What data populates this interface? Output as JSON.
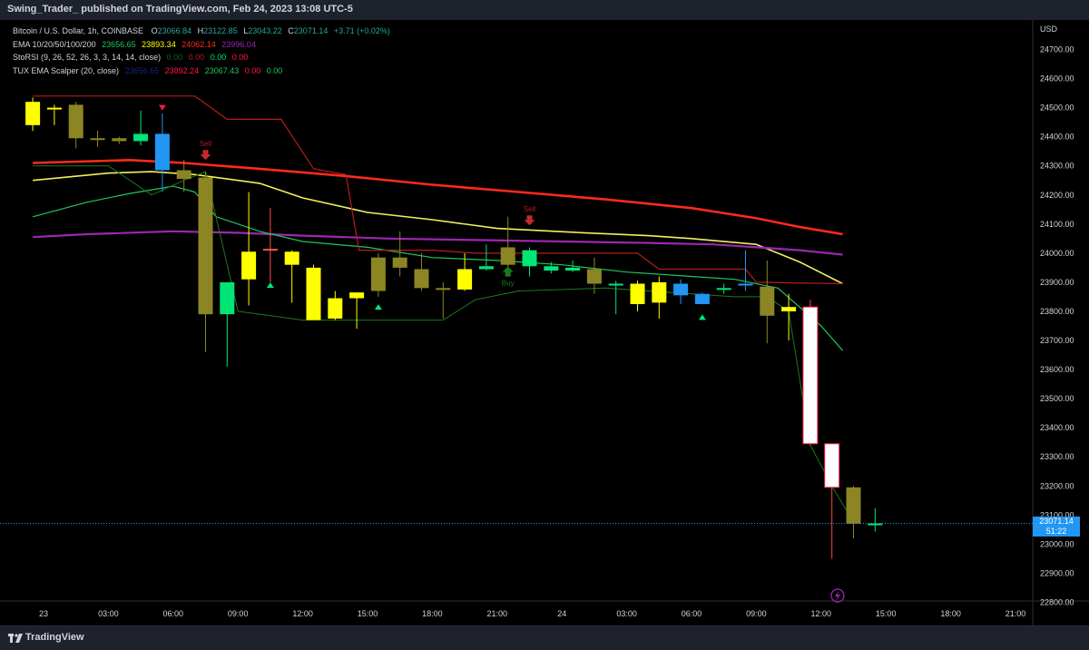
{
  "header": {
    "published_text": "Swing_Trader_ published on TradingView.com, Feb 24, 2023 13:08 UTC-5"
  },
  "legend": {
    "symbol": "Bitcoin / U.S. Dollar, 1h, COINBASE",
    "ohlc": {
      "o_label": "O",
      "o": "23066.84",
      "h_label": "H",
      "h": "23122.85",
      "l_label": "L",
      "l": "23043.22",
      "c_label": "C",
      "c": "23071.14",
      "change": "+3.71 (+0.02%)"
    },
    "ema": {
      "label": "EMA 10/20/50/100/200",
      "v1": "23656.65",
      "v2": "23893.34",
      "v3": "24062.14",
      "v4": "23996.04"
    },
    "storsi": {
      "label": "StoRSI (9, 26, 52, 26, 3, 3, 14, 14, close)",
      "v1": "0.00",
      "v2": "0.00",
      "v3": "0.00",
      "v4": "0.00"
    },
    "tux": {
      "label": "TUX EMA Scalper (20, close)",
      "v1": "23656.65",
      "v2": "23892.24",
      "v3": "23067.43",
      "v4": "0.00",
      "v5": "0.00"
    }
  },
  "currency_label": "USD",
  "last_price": {
    "price": "23071.14",
    "countdown": "51:22"
  },
  "footer": {
    "brand": "TradingView"
  },
  "colors": {
    "background": "#000000",
    "yellow": "#ffff00",
    "green": "#00e676",
    "blue": "#2196f3",
    "olive": "#8c8523",
    "white": "#ffffff",
    "ema_red": "#ff2a1a",
    "ema_yellow": "#f0f060",
    "ema_purple": "#9c27b0",
    "ema_green": "#22c55e",
    "scalper_dark_red": "#b71c1c",
    "scalper_dark_green": "#1b7a1b"
  },
  "chart_data": {
    "type": "candlestick",
    "y_ticks": [
      "24700.00",
      "24600.00",
      "24500.00",
      "24400.00",
      "24300.00",
      "24200.00",
      "24100.00",
      "24000.00",
      "23900.00",
      "23800.00",
      "23700.00",
      "23600.00",
      "23500.00",
      "23400.00",
      "23300.00",
      "23200.00",
      "23100.00",
      "23000.00",
      "22900.00",
      "22800.00"
    ],
    "x_ticks": [
      {
        "t": 0,
        "label": "23"
      },
      {
        "t": 3,
        "label": "03:00"
      },
      {
        "t": 6,
        "label": "06:00"
      },
      {
        "t": 9,
        "label": "09:00"
      },
      {
        "t": 12,
        "label": "12:00"
      },
      {
        "t": 15,
        "label": "15:00"
      },
      {
        "t": 18,
        "label": "18:00"
      },
      {
        "t": 21,
        "label": "21:00"
      },
      {
        "t": 24,
        "label": "24"
      },
      {
        "t": 27,
        "label": "03:00"
      },
      {
        "t": 30,
        "label": "06:00"
      },
      {
        "t": 33,
        "label": "09:00"
      },
      {
        "t": 36,
        "label": "12:00"
      },
      {
        "t": 39,
        "label": "15:00"
      },
      {
        "t": 42,
        "label": "18:00"
      },
      {
        "t": 45,
        "label": "21:00"
      }
    ],
    "ylim": [
      22750,
      24800
    ],
    "candles": [
      {
        "t": -0.5,
        "o": 24520,
        "h": 24535,
        "l": 24420,
        "c": 24440,
        "color": "yellow"
      },
      {
        "t": 0.5,
        "o": 24500,
        "h": 24510,
        "l": 24440,
        "c": 24500,
        "color": "yellow"
      },
      {
        "t": 1.5,
        "o": 24510,
        "h": 24520,
        "l": 24360,
        "c": 24395,
        "color": "olive"
      },
      {
        "t": 2.5,
        "o": 24395,
        "h": 24420,
        "l": 24365,
        "c": 24390,
        "color": "olive"
      },
      {
        "t": 3.5,
        "o": 24385,
        "h": 24400,
        "l": 24375,
        "c": 24395,
        "color": "olive"
      },
      {
        "t": 4.5,
        "o": 24385,
        "h": 24490,
        "l": 24370,
        "c": 24410,
        "color": "green"
      },
      {
        "t": 5.5,
        "o": 24410,
        "h": 24480,
        "l": 24210,
        "c": 24285,
        "color": "blue"
      },
      {
        "t": 6.5,
        "o": 24285,
        "h": 24320,
        "l": 24210,
        "c": 24255,
        "color": "olive"
      },
      {
        "t": 7.5,
        "o": 24260,
        "h": 24280,
        "l": 23660,
        "c": 23790,
        "color": "olive"
      },
      {
        "t": 8.5,
        "o": 23790,
        "h": 23890,
        "l": 23610,
        "c": 23900,
        "color": "green"
      },
      {
        "t": 9.5,
        "o": 23910,
        "h": 24210,
        "l": 23820,
        "c": 24005,
        "color": "yellow"
      },
      {
        "t": 10.5,
        "o": 24015,
        "h": 24155,
        "l": 23900,
        "c": 24015,
        "color": "red"
      },
      {
        "t": 11.5,
        "o": 24005,
        "h": 24010,
        "l": 23830,
        "c": 23960,
        "color": "yellow"
      },
      {
        "t": 12.5,
        "o": 23950,
        "h": 23960,
        "l": 23780,
        "c": 23770,
        "color": "yellow"
      },
      {
        "t": 13.5,
        "o": 23775,
        "h": 23870,
        "l": 23770,
        "c": 23845,
        "color": "yellow"
      },
      {
        "t": 14.5,
        "o": 23845,
        "h": 23865,
        "l": 23740,
        "c": 23865,
        "color": "yellow"
      },
      {
        "t": 15.5,
        "o": 23870,
        "h": 24000,
        "l": 23850,
        "c": 23985,
        "color": "olive"
      },
      {
        "t": 16.5,
        "o": 23985,
        "h": 24075,
        "l": 23920,
        "c": 23950,
        "color": "olive"
      },
      {
        "t": 17.5,
        "o": 23945,
        "h": 24000,
        "l": 23870,
        "c": 23880,
        "color": "olive"
      },
      {
        "t": 18.5,
        "o": 23880,
        "h": 23900,
        "l": 23775,
        "c": 23875,
        "color": "olive"
      },
      {
        "t": 19.5,
        "o": 23875,
        "h": 24000,
        "l": 23870,
        "c": 23945,
        "color": "yellow"
      },
      {
        "t": 20.5,
        "o": 23955,
        "h": 24030,
        "l": 23940,
        "c": 23945,
        "color": "green"
      },
      {
        "t": 21.5,
        "o": 23960,
        "h": 24125,
        "l": 23950,
        "c": 24020,
        "color": "olive"
      },
      {
        "t": 22.5,
        "o": 24010,
        "h": 24020,
        "l": 23920,
        "c": 23955,
        "color": "green"
      },
      {
        "t": 23.5,
        "o": 23955,
        "h": 23970,
        "l": 23930,
        "c": 23940,
        "color": "green"
      },
      {
        "t": 24.5,
        "o": 23950,
        "h": 23975,
        "l": 23935,
        "c": 23940,
        "color": "green"
      },
      {
        "t": 25.5,
        "o": 23945,
        "h": 23985,
        "l": 23860,
        "c": 23895,
        "color": "olive"
      },
      {
        "t": 26.5,
        "o": 23895,
        "h": 23905,
        "l": 23790,
        "c": 23895,
        "color": "green"
      },
      {
        "t": 27.5,
        "o": 23895,
        "h": 23905,
        "l": 23800,
        "c": 23825,
        "color": "yellow"
      },
      {
        "t": 28.5,
        "o": 23830,
        "h": 23920,
        "l": 23775,
        "c": 23900,
        "color": "yellow"
      },
      {
        "t": 29.5,
        "o": 23895,
        "h": 23910,
        "l": 23825,
        "c": 23855,
        "color": "blue"
      },
      {
        "t": 30.5,
        "o": 23860,
        "h": 23865,
        "l": 23825,
        "c": 23825,
        "color": "blue"
      },
      {
        "t": 31.5,
        "o": 23875,
        "h": 23895,
        "l": 23860,
        "c": 23880,
        "color": "green"
      },
      {
        "t": 32.5,
        "o": 23890,
        "h": 24010,
        "l": 23870,
        "c": 23895,
        "color": "blue"
      },
      {
        "t": 33.5,
        "o": 23885,
        "h": 23975,
        "l": 23690,
        "c": 23785,
        "color": "olive"
      },
      {
        "t": 34.5,
        "o": 23800,
        "h": 23860,
        "l": 23700,
        "c": 23815,
        "color": "yellow"
      },
      {
        "t": 35.5,
        "o": 23815,
        "h": 23840,
        "l": 23340,
        "c": 23345,
        "color": "white"
      },
      {
        "t": 36.5,
        "o": 23345,
        "h": 23345,
        "l": 22950,
        "c": 23195,
        "color": "white"
      },
      {
        "t": 37.5,
        "o": 23195,
        "h": 23200,
        "l": 23020,
        "c": 23070,
        "color": "olive"
      },
      {
        "t": 38.5,
        "o": 23067,
        "h": 23123,
        "l": 23043,
        "c": 23071,
        "color": "green"
      }
    ],
    "series": [
      {
        "name": "EMA 10/20/50/100/200",
        "color": "ema_red",
        "points": [
          [
            -0.5,
            24310
          ],
          [
            4,
            24320
          ],
          [
            6.5,
            24310
          ],
          [
            10,
            24290
          ],
          [
            14,
            24265
          ],
          [
            18,
            24235
          ],
          [
            22,
            24210
          ],
          [
            26,
            24185
          ],
          [
            30,
            24155
          ],
          [
            33,
            24120
          ],
          [
            35,
            24090
          ],
          [
            37,
            24065
          ]
        ]
      },
      {
        "name": "EMA 10/20/50/100/200",
        "color": "ema_yellow",
        "points": [
          [
            -0.5,
            24250
          ],
          [
            3,
            24275
          ],
          [
            5,
            24280
          ],
          [
            7,
            24270
          ],
          [
            10,
            24240
          ],
          [
            12,
            24190
          ],
          [
            15,
            24140
          ],
          [
            18,
            24115
          ],
          [
            21,
            24085
          ],
          [
            25,
            24070
          ],
          [
            28,
            24060
          ],
          [
            30,
            24050
          ],
          [
            33,
            24030
          ],
          [
            35,
            23970
          ],
          [
            37,
            23895
          ]
        ]
      },
      {
        "name": "EMA 10/20/50/100/200",
        "color": "ema_purple",
        "points": [
          [
            -0.5,
            24055
          ],
          [
            2,
            24065
          ],
          [
            6,
            24075
          ],
          [
            9,
            24070
          ],
          [
            12,
            24060
          ],
          [
            16,
            24050
          ],
          [
            20,
            24045
          ],
          [
            24,
            24040
          ],
          [
            28,
            24035
          ],
          [
            31,
            24030
          ],
          [
            33,
            24020
          ],
          [
            35,
            24010
          ],
          [
            37,
            23995
          ]
        ]
      },
      {
        "name": "EMA 10/20/50/100/200",
        "color": "ema_green",
        "points": [
          [
            -0.5,
            24125
          ],
          [
            2,
            24175
          ],
          [
            4,
            24205
          ],
          [
            6,
            24230
          ],
          [
            7,
            24210
          ],
          [
            8,
            24125
          ],
          [
            10,
            24075
          ],
          [
            12,
            24040
          ],
          [
            15,
            24020
          ],
          [
            18,
            23985
          ],
          [
            21,
            23975
          ],
          [
            24,
            23960
          ],
          [
            27,
            23935
          ],
          [
            30,
            23920
          ],
          [
            32,
            23910
          ],
          [
            34,
            23880
          ],
          [
            36,
            23750
          ],
          [
            37,
            23665
          ]
        ]
      },
      {
        "name": "TUX EMA Scalper (20, close)",
        "color": "scalper_dark_red",
        "points": [
          [
            -0.5,
            24540
          ],
          [
            7,
            24540
          ],
          [
            8.5,
            24460
          ],
          [
            11,
            24460
          ],
          [
            12.5,
            24290
          ],
          [
            14,
            24270
          ],
          [
            14.6,
            24010
          ],
          [
            18,
            24010
          ],
          [
            20,
            24000
          ],
          [
            27.5,
            24000
          ],
          [
            28.5,
            23945
          ],
          [
            32.5,
            23945
          ],
          [
            33,
            23900
          ],
          [
            37,
            23895
          ]
        ]
      },
      {
        "name": "TUX EMA Scalper (20, close)",
        "color": "scalper_dark_green",
        "points": [
          [
            -0.5,
            24300
          ],
          [
            3,
            24300
          ],
          [
            5,
            24200
          ],
          [
            6.5,
            24250
          ],
          [
            7.5,
            24280
          ],
          [
            9,
            23800
          ],
          [
            12,
            23770
          ],
          [
            18.5,
            23770
          ],
          [
            20,
            23840
          ],
          [
            22,
            23870
          ],
          [
            26,
            23880
          ],
          [
            32,
            23850
          ],
          [
            33.5,
            23850
          ],
          [
            34.5,
            23800
          ],
          [
            35.5,
            23340
          ],
          [
            36.5,
            23200
          ],
          [
            37.5,
            23075
          ]
        ]
      }
    ],
    "signals": [
      {
        "t": 7.5,
        "price": 24330,
        "label": "Sell",
        "dir": "down"
      },
      {
        "t": 22.5,
        "price": 24105,
        "label": "Sell",
        "dir": "down"
      },
      {
        "t": 21.5,
        "price": 23935,
        "label": "Buy",
        "dir": "up"
      }
    ],
    "triangles": [
      {
        "t": 5.5,
        "price": 24500,
        "dir": "down",
        "color": "#ff1744"
      },
      {
        "t": 10.5,
        "price": 23890,
        "dir": "up",
        "color": "#00e676"
      },
      {
        "t": 15.5,
        "price": 23815,
        "dir": "up",
        "color": "#00e676"
      },
      {
        "t": 30.5,
        "price": 23780,
        "dir": "up",
        "color": "#00e676"
      }
    ],
    "last_price_line": 23071.14
  }
}
